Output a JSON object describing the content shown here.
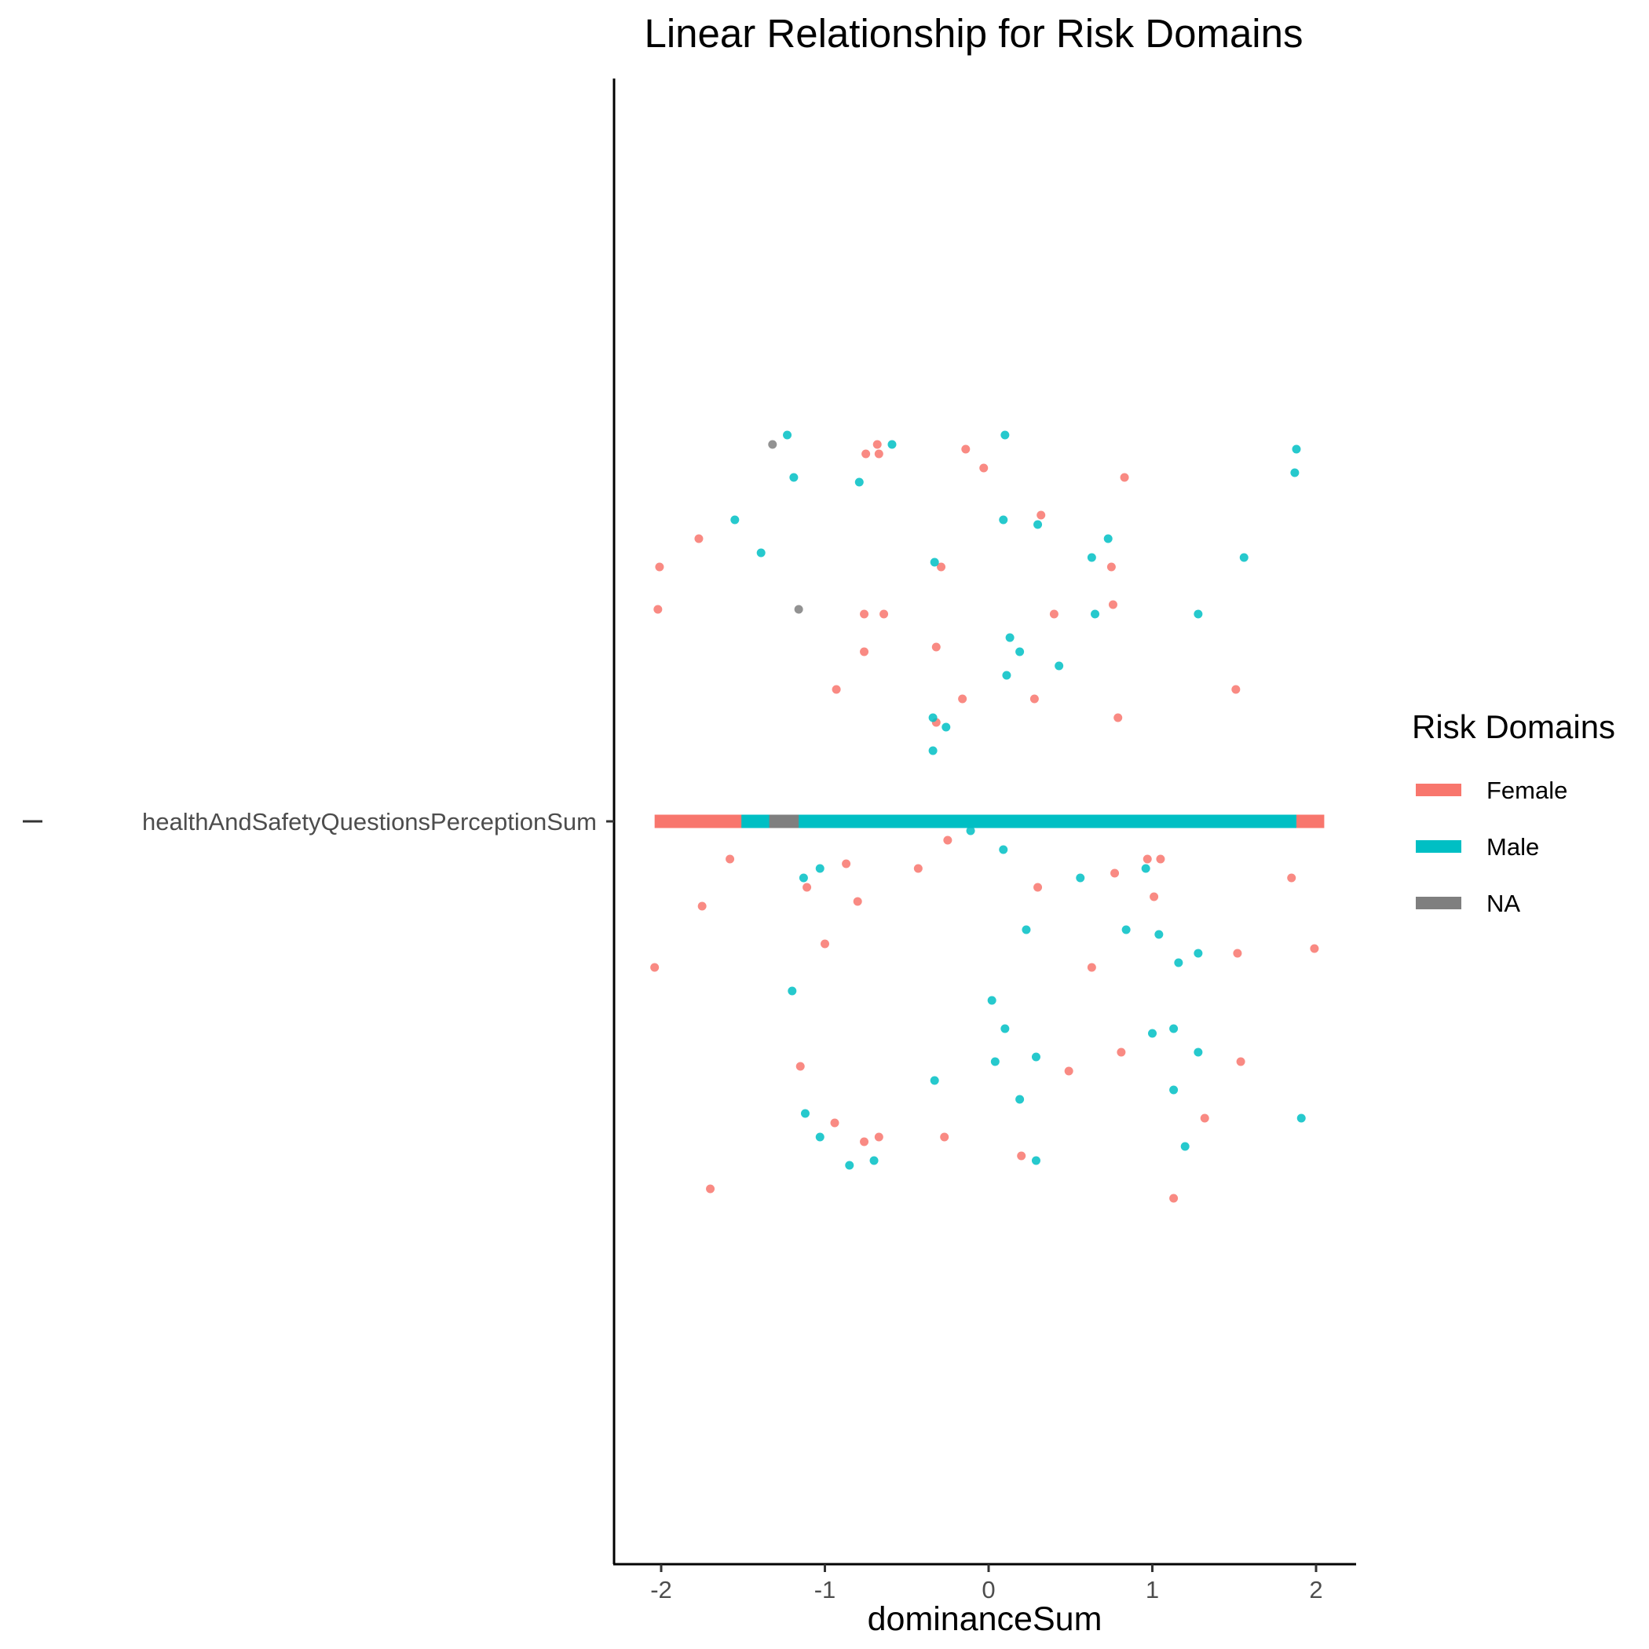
{
  "chart_data": {
    "type": "scatter",
    "title": "Linear Relationship for Risk Domains",
    "xlabel": "dominanceSum",
    "ylabel": "",
    "xlim": [
      -2.3,
      2.25
    ],
    "x_ticks": [
      "-2",
      "-1",
      "0",
      "1",
      "2"
    ],
    "x_tick_values": [
      -2,
      -1,
      0,
      1,
      2
    ],
    "y_categories": [
      "healthAndSafetyQuestionsPerceptionSum"
    ],
    "y_jitter_range": [
      -1,
      1
    ],
    "grid": false,
    "legend": {
      "title": "Risk Domains",
      "position": "right",
      "entries": [
        {
          "label": "Female",
          "color": "#F8766D"
        },
        {
          "label": "Male",
          "color": "#00BFC4"
        },
        {
          "label": "NA",
          "color": "#7F7F7F"
        }
      ]
    },
    "fit_lines": [
      {
        "name": "Female",
        "color": "#F8766D",
        "x": [
          -2.04,
          2.05
        ]
      },
      {
        "name": "Male",
        "color": "#00BFC4",
        "x": [
          -1.51,
          1.88
        ]
      },
      {
        "name": "NA",
        "color": "#7F7F7F",
        "x": [
          -1.34,
          -1.16
        ]
      }
    ],
    "series": [
      {
        "name": "Female",
        "color": "#F8766D",
        "points": [
          [
            -0.68,
            0.8
          ],
          [
            -0.75,
            0.78
          ],
          [
            -0.67,
            0.78
          ],
          [
            -0.14,
            0.79
          ],
          [
            -0.03,
            0.75
          ],
          [
            0.83,
            0.73
          ],
          [
            0.32,
            0.65
          ],
          [
            -1.77,
            0.6
          ],
          [
            -2.01,
            0.54
          ],
          [
            -0.29,
            0.54
          ],
          [
            0.75,
            0.54
          ],
          [
            -2.02,
            0.45
          ],
          [
            -0.76,
            0.44
          ],
          [
            -0.64,
            0.44
          ],
          [
            0.4,
            0.44
          ],
          [
            0.76,
            0.46
          ],
          [
            -0.76,
            0.36
          ],
          [
            -0.32,
            0.37
          ],
          [
            -0.93,
            0.28
          ],
          [
            -0.16,
            0.26
          ],
          [
            0.28,
            0.26
          ],
          [
            1.51,
            0.28
          ],
          [
            0.79,
            0.22
          ],
          [
            -0.32,
            0.21
          ],
          [
            -0.25,
            -0.04
          ],
          [
            -1.58,
            -0.08
          ],
          [
            -0.87,
            -0.09
          ],
          [
            -0.43,
            -0.1
          ],
          [
            0.97,
            -0.08
          ],
          [
            1.05,
            -0.08
          ],
          [
            0.77,
            -0.11
          ],
          [
            1.85,
            -0.12
          ],
          [
            -1.11,
            -0.14
          ],
          [
            0.3,
            -0.14
          ],
          [
            1.01,
            -0.16
          ],
          [
            -1.75,
            -0.18
          ],
          [
            -0.8,
            -0.17
          ],
          [
            -1.0,
            -0.26
          ],
          [
            1.52,
            -0.28
          ],
          [
            1.99,
            -0.27
          ],
          [
            -2.04,
            -0.31
          ],
          [
            0.63,
            -0.31
          ],
          [
            0.81,
            -0.49
          ],
          [
            -1.15,
            -0.52
          ],
          [
            1.54,
            -0.51
          ],
          [
            0.49,
            -0.53
          ],
          [
            -0.94,
            -0.64
          ],
          [
            1.32,
            -0.63
          ],
          [
            -0.76,
            -0.68
          ],
          [
            -0.67,
            -0.67
          ],
          [
            -0.27,
            -0.67
          ],
          [
            0.2,
            -0.71
          ],
          [
            -1.7,
            -0.78
          ],
          [
            1.13,
            -0.8
          ]
        ]
      },
      {
        "name": "Male",
        "color": "#00BFC4",
        "points": [
          [
            -1.23,
            0.82
          ],
          [
            -0.59,
            0.8
          ],
          [
            0.1,
            0.82
          ],
          [
            1.88,
            0.79
          ],
          [
            1.87,
            0.74
          ],
          [
            -1.19,
            0.73
          ],
          [
            -0.79,
            0.72
          ],
          [
            -1.55,
            0.64
          ],
          [
            0.09,
            0.64
          ],
          [
            0.3,
            0.63
          ],
          [
            0.73,
            0.6
          ],
          [
            -1.39,
            0.57
          ],
          [
            -0.33,
            0.55
          ],
          [
            0.63,
            0.56
          ],
          [
            1.56,
            0.56
          ],
          [
            0.65,
            0.44
          ],
          [
            1.28,
            0.44
          ],
          [
            0.13,
            0.39
          ],
          [
            0.19,
            0.36
          ],
          [
            0.43,
            0.33
          ],
          [
            0.11,
            0.31
          ],
          [
            -0.34,
            0.22
          ],
          [
            -0.26,
            0.2
          ],
          [
            -0.34,
            0.15
          ],
          [
            -0.11,
            -0.02
          ],
          [
            0.09,
            -0.06
          ],
          [
            -1.03,
            -0.1
          ],
          [
            -1.13,
            -0.12
          ],
          [
            0.96,
            -0.1
          ],
          [
            0.56,
            -0.12
          ],
          [
            0.23,
            -0.23
          ],
          [
            0.84,
            -0.23
          ],
          [
            1.04,
            -0.24
          ],
          [
            1.28,
            -0.28
          ],
          [
            1.16,
            -0.3
          ],
          [
            -1.2,
            -0.36
          ],
          [
            0.02,
            -0.38
          ],
          [
            0.1,
            -0.44
          ],
          [
            1.0,
            -0.45
          ],
          [
            1.13,
            -0.44
          ],
          [
            1.28,
            -0.49
          ],
          [
            0.29,
            -0.5
          ],
          [
            0.04,
            -0.51
          ],
          [
            -0.33,
            -0.55
          ],
          [
            1.13,
            -0.57
          ],
          [
            0.19,
            -0.59
          ],
          [
            -1.12,
            -0.62
          ],
          [
            1.91,
            -0.63
          ],
          [
            -1.03,
            -0.67
          ],
          [
            1.2,
            -0.69
          ],
          [
            -0.7,
            -0.72
          ],
          [
            0.29,
            -0.72
          ],
          [
            -0.85,
            -0.73
          ]
        ]
      },
      {
        "name": "NA",
        "color": "#7F7F7F",
        "points": [
          [
            -1.32,
            0.8
          ],
          [
            -1.16,
            0.45
          ]
        ]
      }
    ]
  }
}
